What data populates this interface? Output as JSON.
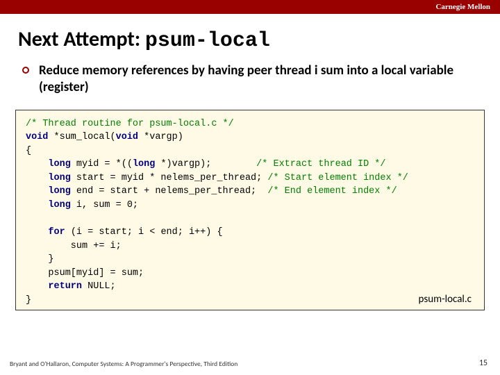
{
  "header": {
    "org": "Carnegie Mellon"
  },
  "title": {
    "prefix": "Next Attempt: ",
    "mono": "psum-local"
  },
  "bullet": {
    "text": "Reduce memory references by having peer thread i sum into a local variable (register)"
  },
  "code": {
    "l1_cm": "/* Thread routine for psum-local.c */",
    "l2a": "void",
    "l2b": " *sum_local(",
    "l2c": "void",
    "l2d": " *vargp)",
    "l3": "{",
    "l4a": "    ",
    "l4b": "long",
    "l4c": " myid = *((",
    "l4d": "long",
    "l4e": " *)vargp);        ",
    "l4f": "/* Extract thread ID */",
    "l5a": "    ",
    "l5b": "long",
    "l5c": " start = myid * nelems_per_thread; ",
    "l5d": "/* Start element index */",
    "l6a": "    ",
    "l6b": "long",
    "l6c": " end = start + nelems_per_thread;  ",
    "l6d": "/* End element index */",
    "l7a": "    ",
    "l7b": "long",
    "l7c": " i, sum = 0;",
    "blank1": " ",
    "l8a": "    ",
    "l8b": "for",
    "l8c": " (i = start; i < end; i++) {",
    "l9": "        sum += i;",
    "l10": "    }",
    "l11": "    psum[myid] = sum;",
    "l12a": "    ",
    "l12b": "return",
    "l12c": " NULL;",
    "l13": "}"
  },
  "filename": "psum-local.c",
  "footer": {
    "text": "Bryant and O'Hallaron, Computer Systems: A Programmer's Perspective, Third Edition",
    "page": "15"
  }
}
